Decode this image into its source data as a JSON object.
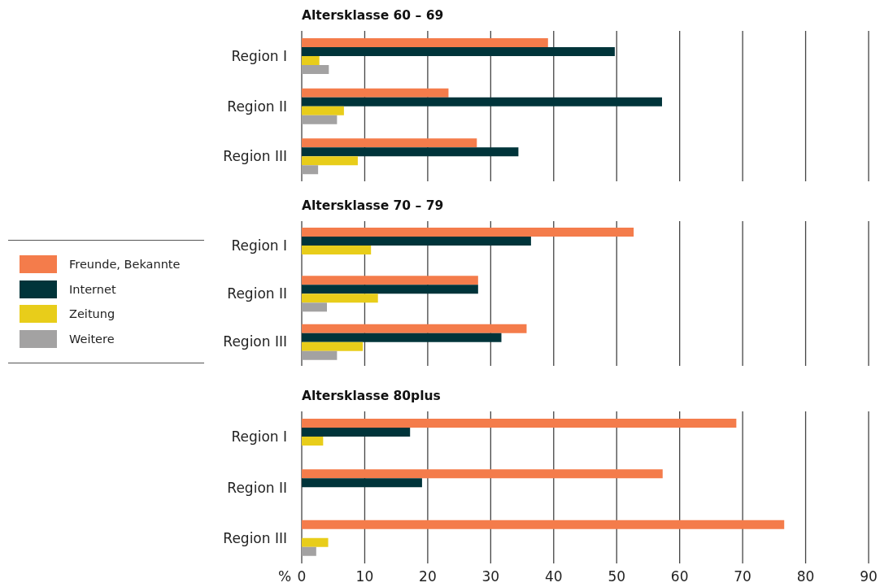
{
  "chart_data": [
    {
      "type": "bar",
      "orientation": "horizontal",
      "title": "Altersklasse 60 – 69",
      "categories": [
        "Region I",
        "Region II",
        "Region III"
      ],
      "series": [
        {
          "color": "#f47c4b",
          "values": [
            39.1,
            23.3,
            27.8
          ]
        },
        {
          "color": "#00343a",
          "values": [
            49.7,
            57.2,
            34.4
          ]
        },
        {
          "color": "#e8cd1a",
          "values": [
            2.8,
            6.7,
            8.9
          ]
        },
        {
          "color": "#a3a2a2",
          "values": [
            4.3,
            5.6,
            2.6
          ]
        }
      ],
      "xlim": [
        0,
        90
      ],
      "xticks": [
        0,
        10,
        20,
        30,
        40,
        50,
        60,
        70,
        80,
        90
      ],
      "grid": "x",
      "legend": false,
      "tick_labels": "y"
    },
    {
      "type": "bar",
      "orientation": "horizontal",
      "title": "Altersklasse 70 – 79",
      "categories": [
        "Region I",
        "Region II",
        "Region III"
      ],
      "series": [
        {
          "name": "Freunde, Bekannte",
          "color": "#f47c4b",
          "values": [
            52.7,
            28.0,
            35.7
          ]
        },
        {
          "name": "Internet",
          "color": "#00343a",
          "values": [
            36.4,
            28.0,
            31.7
          ]
        },
        {
          "name": "Zeitung",
          "color": "#e8cd1a",
          "values": [
            11.0,
            12.1,
            9.7
          ]
        },
        {
          "name": "Weitere",
          "color": "#a3a2a2",
          "values": [
            null,
            4.0,
            5.6
          ]
        }
      ],
      "xlim": [
        0,
        90
      ],
      "xticks": [
        0,
        10,
        20,
        30,
        40,
        50,
        60,
        70,
        80,
        90
      ],
      "grid": "x",
      "legend": "left",
      "tick_labels": "y"
    },
    {
      "type": "bar",
      "orientation": "horizontal",
      "title": "Altersklasse 80plus",
      "xlabel": "%",
      "categories": [
        "Region I",
        "Region II",
        "Region III"
      ],
      "series": [
        {
          "color": "#f47c4b",
          "values": [
            69.0,
            57.3,
            76.6
          ]
        },
        {
          "color": "#00343a",
          "values": [
            17.2,
            19.1,
            null
          ]
        },
        {
          "color": "#e8cd1a",
          "values": [
            3.4,
            null,
            4.2
          ]
        },
        {
          "color": "#a3a2a2",
          "values": [
            null,
            null,
            2.3
          ]
        }
      ],
      "xlim": [
        0,
        90
      ],
      "xticks": [
        0,
        10,
        20,
        30,
        40,
        50,
        60,
        70,
        80,
        90
      ],
      "grid": "x",
      "legend": false
    }
  ]
}
